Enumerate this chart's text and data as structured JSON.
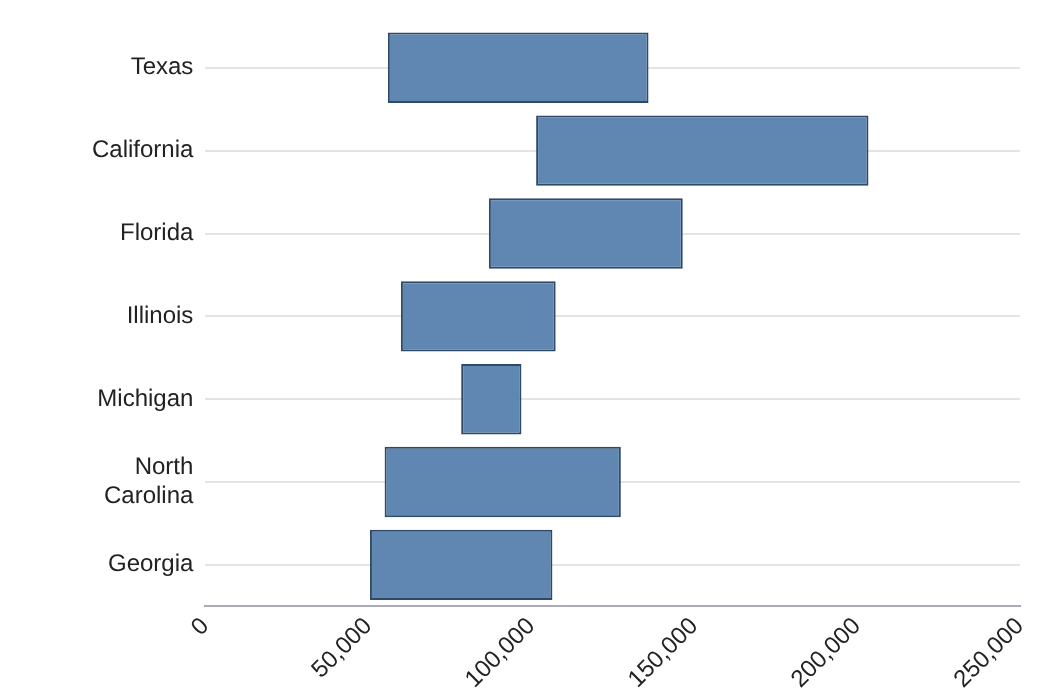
{
  "chart_data": {
    "type": "bar",
    "orientation": "horizontal",
    "categories": [
      "Texas",
      "California",
      "Florida",
      "Illinois",
      "Michigan",
      "North Carolina",
      "Georgia"
    ],
    "base": [
      56000,
      101500,
      87000,
      60000,
      78500,
      55000,
      50500
    ],
    "values": [
      80000,
      102000,
      59500,
      47500,
      18500,
      72500,
      56000
    ],
    "color": "#5f87b2",
    "xlim": [
      0,
      250000
    ],
    "xticks": [
      {
        "value": 0,
        "label": "0"
      },
      {
        "value": 50000,
        "label": "50,000"
      },
      {
        "value": 100000,
        "label": "100,000"
      },
      {
        "value": 150000,
        "label": "150,000"
      },
      {
        "value": 200000,
        "label": "200,000"
      },
      {
        "value": 250000,
        "label": "250,000"
      }
    ],
    "grid": "y",
    "legend": false
  }
}
